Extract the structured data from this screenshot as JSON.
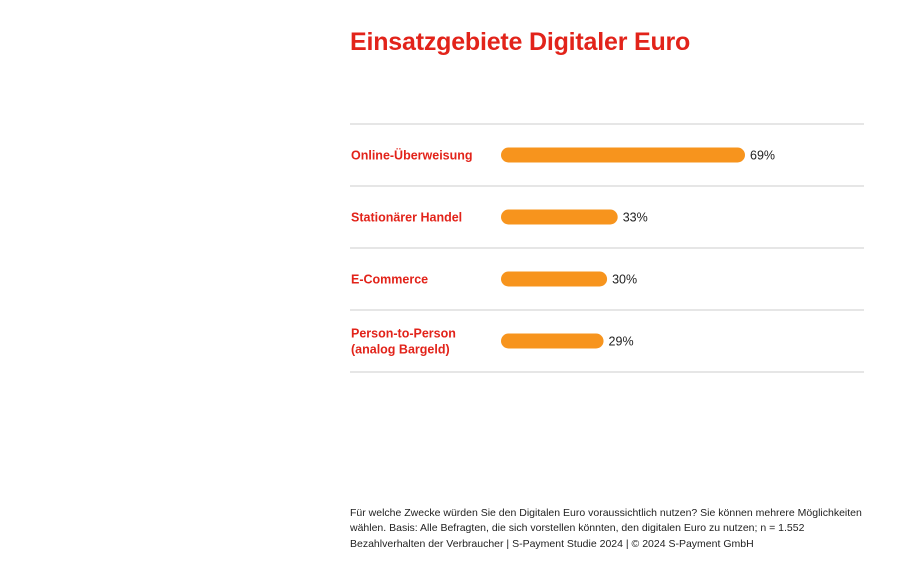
{
  "colors": {
    "title": "#e2231a",
    "category_label": "#e2231a",
    "bar": "#f7941d",
    "divider": "#cccccc",
    "value_text": "#222222"
  },
  "chart_data": {
    "type": "bar",
    "orientation": "horizontal",
    "title": "Einsatzgebiete Digitaler Euro",
    "categories": [
      [
        "Online-Überweisung"
      ],
      [
        "Stationärer Handel"
      ],
      [
        "E-Commerce"
      ],
      [
        "Person-to-Person",
        "(analog Bargeld)"
      ]
    ],
    "values": [
      69,
      33,
      30,
      29
    ],
    "value_labels": [
      "69%",
      "33%",
      "30%",
      "29%"
    ],
    "unit": "%",
    "xlim": [
      0,
      100
    ],
    "grid": false,
    "legend": "none"
  },
  "footnote": "Für welche Zwecke würden Sie den Digitalen Euro voraussichtlich nutzen? Sie können mehrere Möglichkeiten wählen. Basis: Alle Befragten, die sich vorstellen könnten, den digitalen Euro zu nutzen; n = 1.552",
  "footer": "Bezahlverhalten der Verbraucher  |  S-Payment Studie 2024  |  © 2024 S-Payment GmbH"
}
